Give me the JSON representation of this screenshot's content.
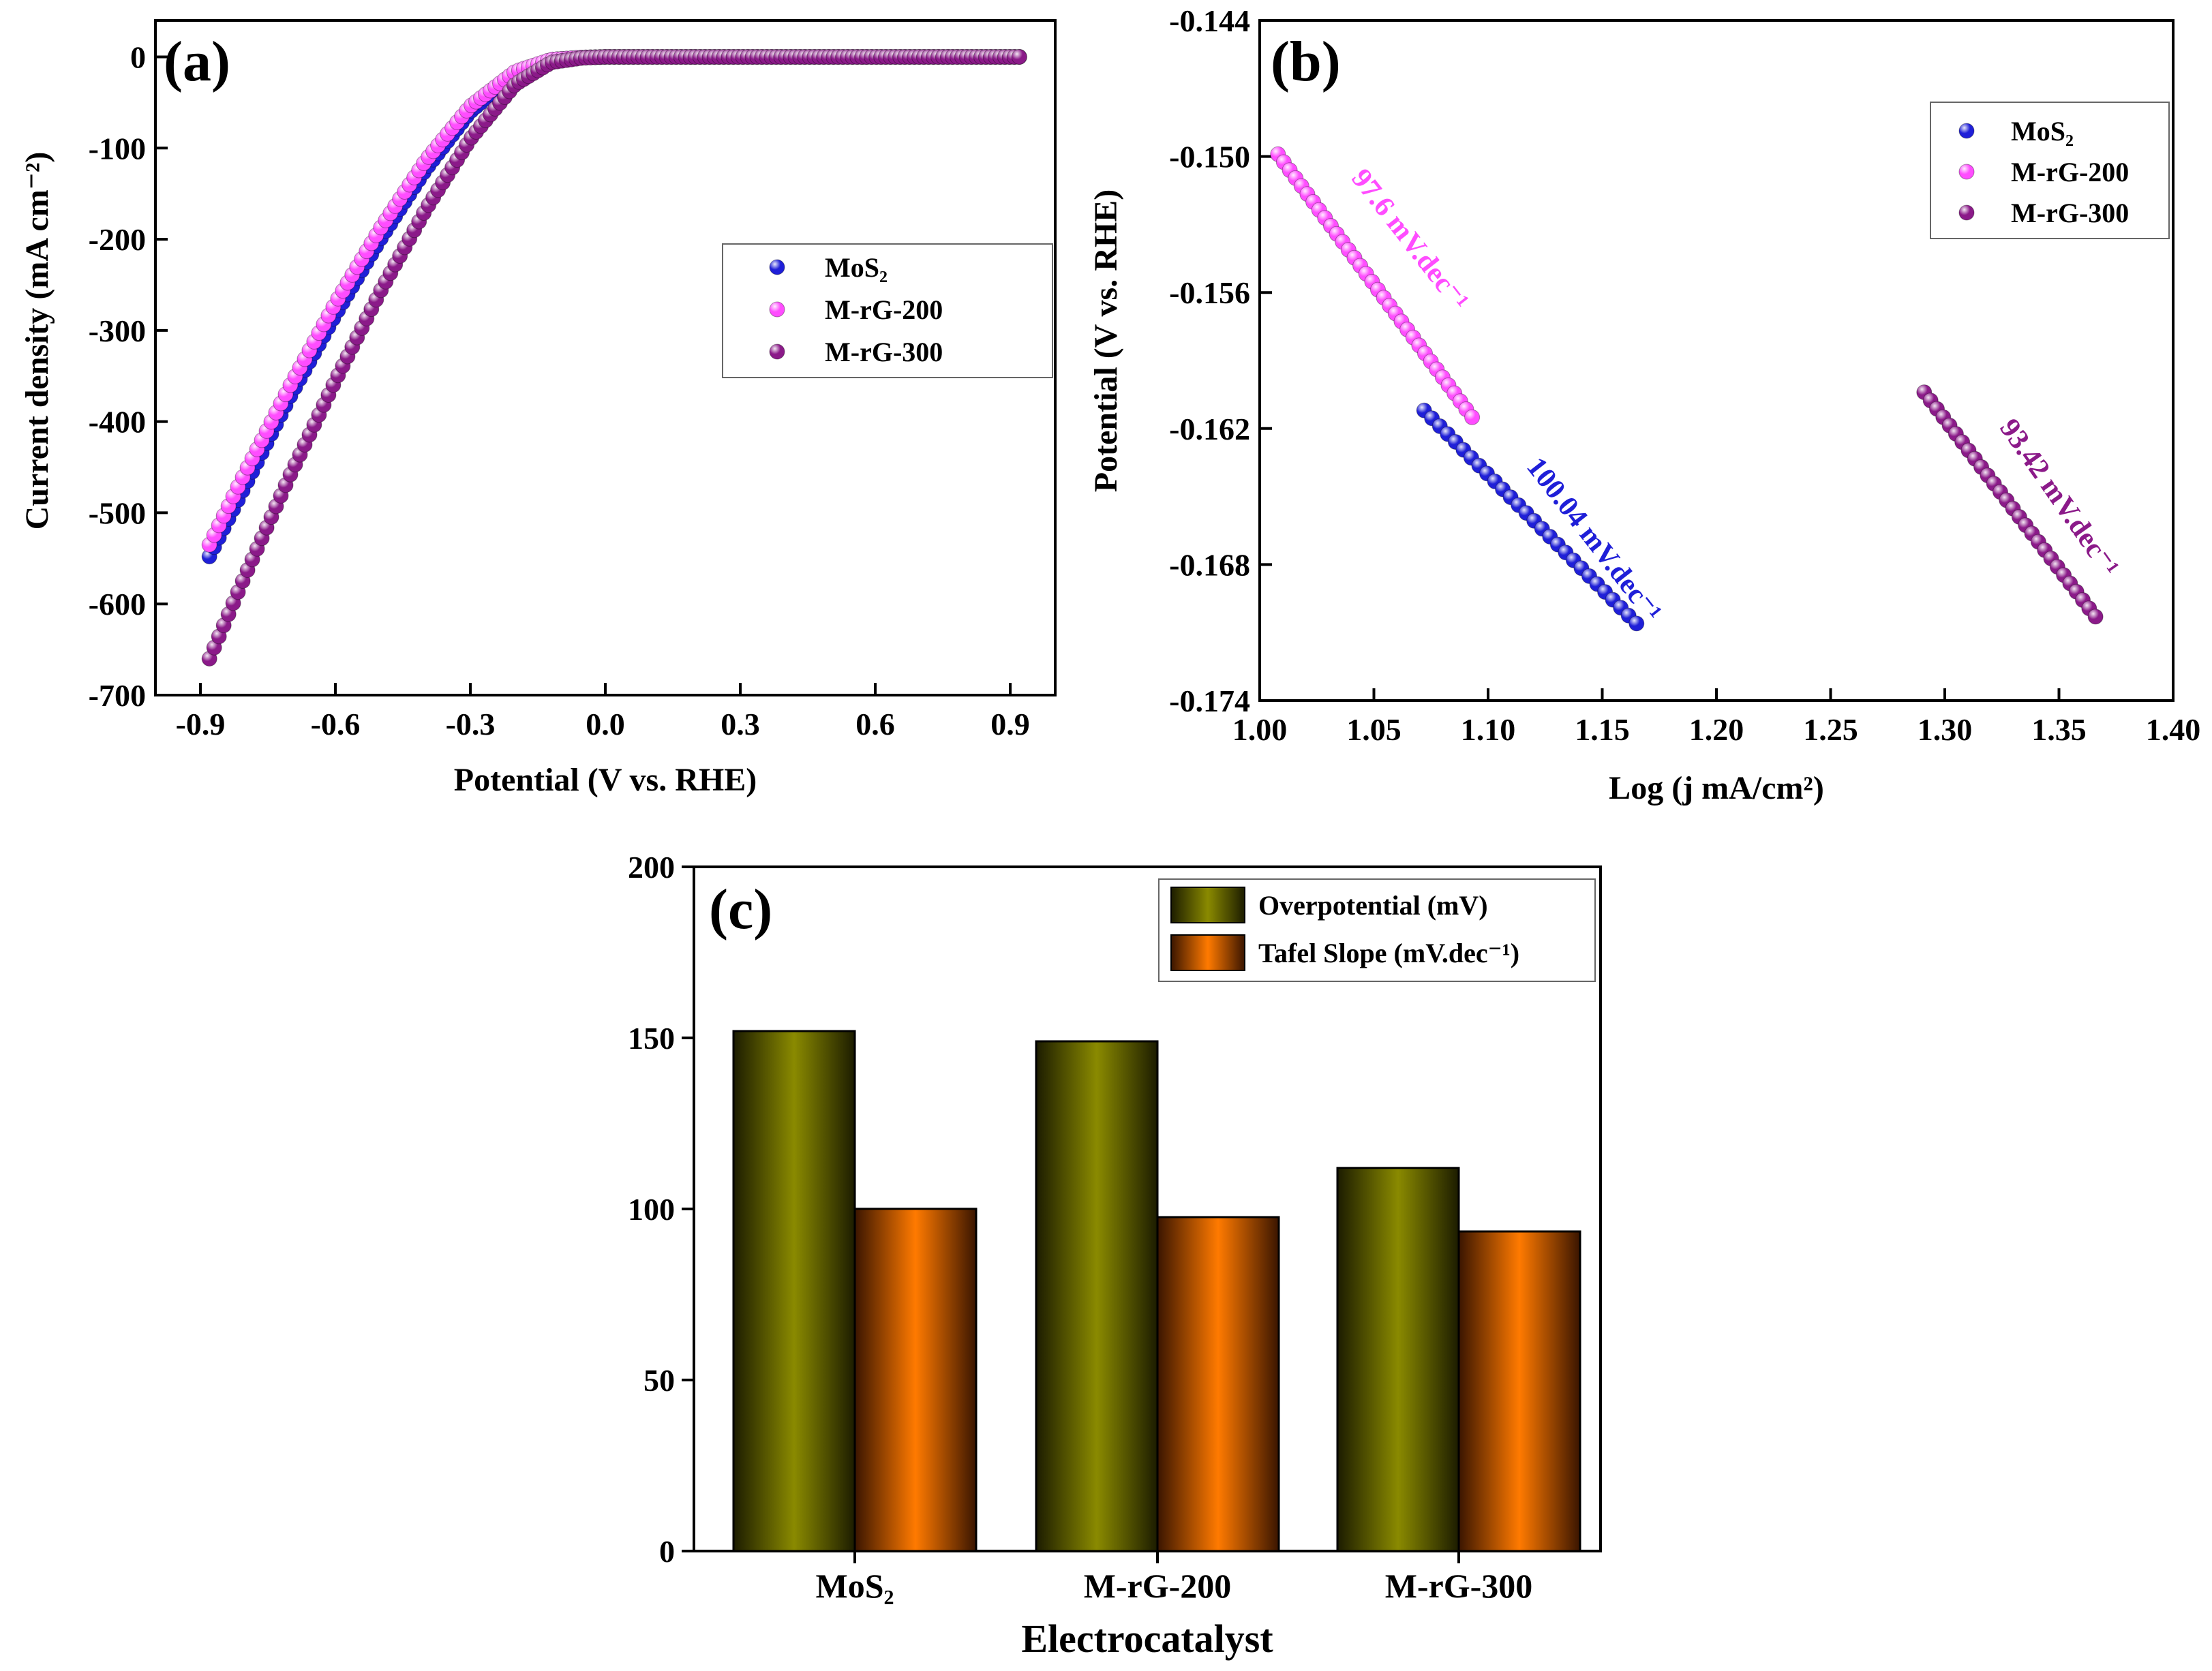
{
  "chart_data": [
    {
      "panel": "(a)",
      "type": "scatter",
      "xlabel": "Potential (V vs. RHE)",
      "ylabel": "Current density (mA cm⁻²)",
      "xlim": [
        -1.0,
        1.0
      ],
      "ylim": [
        -700,
        40
      ],
      "xticks": [
        "-0.9",
        "-0.6",
        "-0.3",
        "0.0",
        "0.3",
        "0.6",
        "0.9"
      ],
      "yticks": [
        "0",
        "-100",
        "-200",
        "-300",
        "-400",
        "-500",
        "-600",
        "-700"
      ],
      "legend": [
        "MoS₂",
        "M-rG-200",
        "M-rG-300"
      ],
      "series": [
        {
          "name": "MoS₂",
          "color": "#1f1fd8",
          "x": [
            -0.88,
            -0.8,
            -0.7,
            -0.6,
            -0.5,
            -0.4,
            -0.3,
            -0.2,
            -0.12,
            -0.05,
            0.0,
            0.2,
            0.5,
            0.92
          ],
          "y": [
            -548,
            -470,
            -372,
            -283,
            -200,
            -124,
            -60,
            -18,
            -3,
            -0.6,
            0,
            0,
            0,
            0
          ]
        },
        {
          "name": "M-rG-200",
          "color": "#ff4dff",
          "x": [
            -0.88,
            -0.8,
            -0.7,
            -0.6,
            -0.5,
            -0.4,
            -0.3,
            -0.2,
            -0.12,
            -0.05,
            0.0,
            0.2,
            0.5,
            0.92
          ],
          "y": [
            -535,
            -455,
            -360,
            -270,
            -188,
            -114,
            -54,
            -16,
            -3,
            -0.6,
            0,
            0,
            0,
            0
          ]
        },
        {
          "name": "M-rG-300",
          "color": "#8b1a89",
          "x": [
            -0.88,
            -0.8,
            -0.7,
            -0.6,
            -0.5,
            -0.4,
            -0.3,
            -0.2,
            -0.12,
            -0.05,
            0.0,
            0.2,
            0.5,
            0.92
          ],
          "y": [
            -660,
            -568,
            -458,
            -355,
            -257,
            -168,
            -90,
            -30,
            -6,
            -1,
            0,
            0,
            0,
            0
          ]
        }
      ]
    },
    {
      "panel": "(b)",
      "type": "scatter",
      "xlabel": "Log (j mA/cm²)",
      "ylabel": "Potential (V vs. RHE)",
      "xlim": [
        1.0,
        1.4
      ],
      "ylim": [
        -0.174,
        -0.144
      ],
      "xticks": [
        "1.00",
        "1.05",
        "1.10",
        "1.15",
        "1.20",
        "1.25",
        "1.30",
        "1.35",
        "1.40"
      ],
      "yticks": [
        "-0.144",
        "-0.150",
        "-0.156",
        "-0.162",
        "-0.168",
        "-0.174"
      ],
      "legend": [
        "MoS₂",
        "M-rG-200",
        "M-rG-300"
      ],
      "series": [
        {
          "name": "MoS₂",
          "color": "#1f1fd8",
          "x_start": 1.072,
          "x_end": 1.165,
          "y_start": -0.1612,
          "y_end": -0.1706,
          "points": 28,
          "annotation": "100.04 mV.dec⁻¹"
        },
        {
          "name": "M-rG-200",
          "color": "#ff4dff",
          "x_start": 1.008,
          "x_end": 1.093,
          "y_start": -0.1499,
          "y_end": -0.1615,
          "points": 34,
          "annotation": "97.6 mV.dec⁻¹"
        },
        {
          "name": "M-rG-300",
          "color": "#8b1a89",
          "x_start": 1.291,
          "x_end": 1.366,
          "y_start": -0.1604,
          "y_end": -0.1703,
          "points": 28,
          "annotation": "93.42 mV.dec⁻¹"
        }
      ]
    },
    {
      "panel": "(c)",
      "type": "bar",
      "xlabel": "Electrocatalyst",
      "ylabel": "",
      "ylim": [
        0,
        200
      ],
      "yticks": [
        "0",
        "50",
        "100",
        "150",
        "200"
      ],
      "categories": [
        "MoS₂",
        "M-rG-200",
        "M-rG-300"
      ],
      "series": [
        {
          "name": "Overpotential (mV)",
          "color": "#7a7a00",
          "values": [
            152,
            149,
            112
          ]
        },
        {
          "name": "Tafel Slope (mV.dec⁻¹)",
          "color": "#ff7700",
          "values": [
            100.04,
            97.6,
            93.42
          ]
        }
      ]
    }
  ]
}
